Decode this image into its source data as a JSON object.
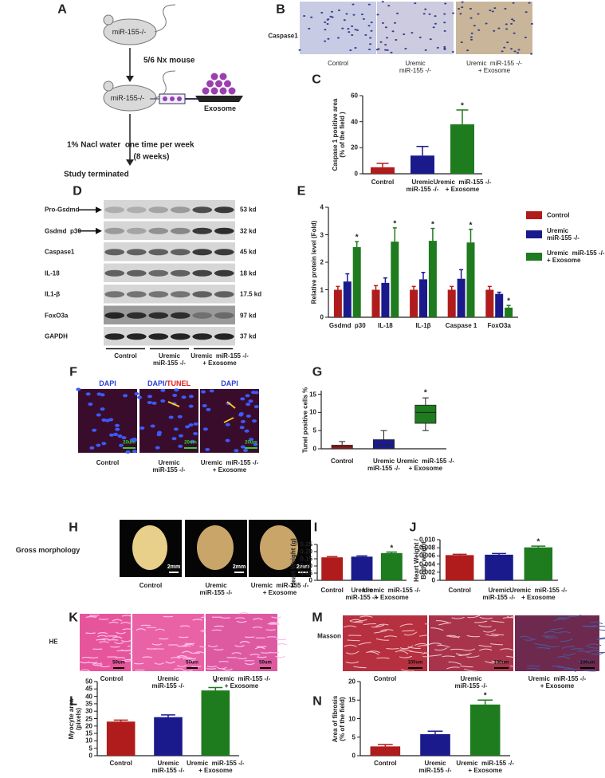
{
  "panel_labels": [
    "A",
    "B",
    "C",
    "D",
    "E",
    "F",
    "G",
    "H",
    "I",
    "J",
    "K",
    "L",
    "M",
    "N"
  ],
  "diagram": {
    "mouse_label_1": "miR-155-/-",
    "step_1": "5/6 Nx mouse",
    "mouse_label_2": "miR-155-/-",
    "exosome": "Exosome",
    "step_2": "1% Nacl water  one time per week",
    "step_2_note": "(8 weeks)",
    "end": "Study terminated"
  },
  "caspase_images": {
    "row_label": "Caspase1",
    "columns": [
      "Control",
      "Uremic\nmiR-155 -/-",
      "Uremic  miR-155 -/-\n+ Exosome"
    ]
  },
  "western_blot": {
    "rows": [
      {
        "label": "Pro-Gsdmd",
        "size": "53 kd"
      },
      {
        "label": "Gsdmd  p30",
        "size": "32 kd"
      },
      {
        "label": "Caspase1",
        "size": "45 kd"
      },
      {
        "label": "IL-18",
        "size": "18 kd"
      },
      {
        "label": "IL1-β",
        "size": "17.5 kd"
      },
      {
        "label": "FoxO3a",
        "size": "97 kd"
      },
      {
        "label": "GAPDH",
        "size": "37 kd"
      }
    ],
    "groups": [
      "Control",
      "Uremic\nmiR-155 -/-",
      "Uremic  miR-155 -/-\n+ Exosome"
    ]
  },
  "tunel_images": {
    "stains": [
      [
        "DAPI"
      ],
      [
        "DAPI/",
        "TUNEL"
      ],
      [
        "DAPI"
      ]
    ],
    "scale_bar": "20um",
    "columns": [
      "Control",
      "Uremic\nmiR-155 -/-",
      "Uremic  miR-155 -/-\n+ Exosome"
    ]
  },
  "gross_images": {
    "row_label": "Gross morphology",
    "scale_bar": "2mm",
    "columns": [
      "Control",
      "Uremic\nmiR-155 -/-",
      "Uremic  miR-155 -/-\n+ Exosome"
    ]
  },
  "he_images": {
    "row_label": "HE",
    "scale_bar": "50um",
    "columns": [
      "Control",
      "Uremic\nmiR-155 -/-",
      "Uremic  miR-155 -/-\n+ Exosome"
    ]
  },
  "masson_images": {
    "row_label": "Masson",
    "scale_bar": "100um",
    "columns": [
      "Control",
      "Uremic\nmiR-155 -/-",
      "Uremic  miR-155 -/-\n+ Exosome"
    ]
  },
  "chart_data": [
    {
      "type": "bar",
      "ylabel": "Caspase 1 positive area\n(% of the field )",
      "categories": [
        "Control",
        "Uremic\nmiR-155 -/-",
        "Uremic  miR-155 -/-\n+ Exosome"
      ],
      "values": [
        5,
        14,
        38
      ],
      "errors": [
        3,
        7,
        11
      ],
      "significance": [
        null,
        null,
        "*"
      ],
      "colors": [
        "#b01c1c",
        "#1a1a8c",
        "#1e7b1e"
      ],
      "ylim": [
        0,
        60
      ],
      "yticks": [
        0,
        20,
        40,
        60
      ]
    },
    {
      "type": "bar",
      "ylabel": "Relative protein level (Fold)",
      "categories": [
        "Gsdmd  p30",
        "IL-18",
        "IL-1β",
        "Caspase 1",
        "FoxO3a"
      ],
      "ylim": [
        0,
        4
      ],
      "yticks": [
        0,
        1,
        2,
        3,
        4
      ],
      "legend": "outside-right",
      "series": [
        {
          "name": "Control",
          "color": "#b01c1c",
          "values": [
            1,
            1,
            1,
            1,
            1
          ],
          "errors": [
            0.12,
            0.15,
            0.12,
            0.12,
            0.12
          ]
        },
        {
          "name": "Uremic\nmiR-155 -/-",
          "color": "#1a1a8c",
          "values": [
            1.3,
            1.25,
            1.38,
            1.4,
            0.85
          ],
          "errors": [
            0.28,
            0.18,
            0.25,
            0.33,
            0.06
          ]
        },
        {
          "name": "Uremic  miR-155 -/-\n+ Exosome",
          "color": "#1e7b1e",
          "values": [
            2.55,
            2.75,
            2.78,
            2.72,
            0.35
          ],
          "errors": [
            0.2,
            0.5,
            0.45,
            0.48,
            0.08
          ],
          "significance": [
            "*",
            "*",
            "*",
            "*",
            "*"
          ]
        }
      ]
    },
    {
      "type": "box",
      "ylabel": "Tunel positive cells %",
      "categories": [
        "Control",
        "Uremic\nmiR-155 -/-",
        "Uremic  miR-155 -/-\n+ Exosome"
      ],
      "colors": [
        "#b01c1c",
        "#1a1a8c",
        "#1e7b1e"
      ],
      "ylim": [
        0,
        16
      ],
      "yticks": [
        0,
        5,
        10,
        15
      ],
      "boxes": [
        {
          "min": 0,
          "q1": 0,
          "median": 0.5,
          "q3": 1,
          "max": 2
        },
        {
          "min": 0,
          "q1": 0,
          "median": 1,
          "q3": 2.5,
          "max": 5
        },
        {
          "min": 5,
          "q1": 7,
          "median": 10,
          "q3": 12,
          "max": 14
        }
      ],
      "significance": [
        null,
        null,
        "*"
      ]
    },
    {
      "type": "bar",
      "ylabel": "Heart Weight (g)",
      "categories": [
        "Control",
        "Uremic\nmiR-155 -/-",
        "Uremic  miR-155 -/-\n+ Exosome"
      ],
      "values": [
        0.16,
        0.165,
        0.19
      ],
      "errors": [
        0.005,
        0.005,
        0.007
      ],
      "significance": [
        null,
        null,
        "*"
      ],
      "colors": [
        "#b01c1c",
        "#1a1a8c",
        "#1e7b1e"
      ],
      "ylim": [
        0,
        0.25
      ],
      "yticks": [
        0,
        0.05,
        {
          "value": 0.1,
          "label": "0.10"
        },
        0.15,
        {
          "value": 0.2,
          "label": "0.20"
        },
        0.25
      ]
    },
    {
      "type": "bar",
      "ylabel": "Heart Weight /\nBody weight",
      "categories": [
        "Control",
        "Uremic\nmiR-155 -/-",
        "Uremic  miR-155 -/-\n+ Exosome"
      ],
      "values": [
        0.0062,
        0.0063,
        0.0081
      ],
      "errors": [
        0.0002,
        0.0003,
        0.0003
      ],
      "significance": [
        null,
        null,
        "*"
      ],
      "colors": [
        "#b01c1c",
        "#1a1a8c",
        "#1e7b1e"
      ],
      "ylim": [
        0,
        0.01
      ],
      "yticks": [
        0,
        0.002,
        0.004,
        0.006,
        0.008,
        {
          "value": 0.01,
          "label": "0.010"
        }
      ]
    },
    {
      "type": "bar",
      "ylabel": "Myocyte area\n(pixels)",
      "categories": [
        "Control",
        "Uremic\nmiR-155 -/-",
        "Uremic  miR-155 -/-\n+ Exosome"
      ],
      "values": [
        23,
        26,
        44
      ],
      "errors": [
        1,
        1.5,
        2
      ],
      "significance": [
        null,
        null,
        "*"
      ],
      "colors": [
        "#b01c1c",
        "#1a1a8c",
        "#1e7b1e"
      ],
      "ylim": [
        0,
        50
      ],
      "yticks": [
        0,
        5,
        10,
        15,
        20,
        25,
        30,
        35,
        40,
        45,
        50
      ]
    },
    {
      "type": "bar",
      "ylabel": "Area of fibrosis\n(% of the field)",
      "categories": [
        "Control",
        "Uremic\nmiR-155 -/-",
        "Uremic  miR-155 -/-\n+ Exosome"
      ],
      "values": [
        2.5,
        5.8,
        13.8
      ],
      "errors": [
        0.5,
        0.8,
        1.2
      ],
      "significance": [
        null,
        null,
        "*"
      ],
      "colors": [
        "#b01c1c",
        "#1a1a8c",
        "#1e7b1e"
      ],
      "ylim": [
        0,
        20
      ],
      "yticks": [
        0,
        5,
        10,
        15,
        20
      ]
    }
  ]
}
